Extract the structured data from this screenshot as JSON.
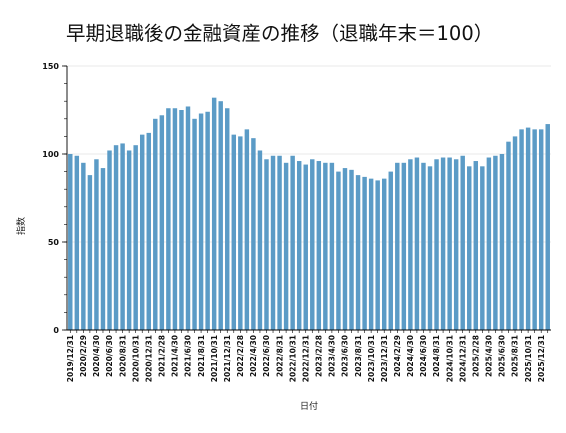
{
  "chart_data": {
    "type": "bar",
    "title": "早期退職後の金融資産の推移（退職年末＝100）",
    "xlabel": "日付",
    "ylabel": "指数",
    "ylim": [
      0,
      150
    ],
    "y_ticks": [
      0,
      50,
      100,
      150
    ],
    "grid": true,
    "bar_color": "#5b9bc6",
    "categories": [
      "2019/12/31",
      "",
      "2020/2/29",
      "",
      "2020/4/30",
      "",
      "2020/6/30",
      "",
      "2020/8/31",
      "",
      "2020/10/31",
      "",
      "2020/12/31",
      "",
      "2021/2/28",
      "",
      "2021/4/30",
      "",
      "2021/6/30",
      "",
      "2021/8/31",
      "",
      "2021/10/31",
      "",
      "2021/12/31",
      "",
      "2022/2/28",
      "",
      "2022/4/30",
      "",
      "2022/6/30",
      "",
      "2022/8/31",
      "",
      "2022/10/31",
      "",
      "2022/12/31",
      "",
      "2023/2/28",
      "",
      "2023/4/30",
      "",
      "2023/6/30",
      "",
      "2023/8/31",
      "",
      "2023/10/31",
      "",
      "2023/12/31",
      "",
      "2024/2/29",
      "",
      "2024/4/30",
      "",
      "2024/6/30",
      "",
      "2024/8/31",
      "",
      "2024/10/31",
      "",
      "2024/12/31",
      "",
      "2025/2/28",
      "",
      "2025/4/30",
      "",
      "2025/6/30",
      "",
      "2025/8/31",
      "",
      "2025/10/31",
      "",
      "2025/12/31",
      ""
    ],
    "values": [
      100,
      99,
      95,
      88,
      97,
      92,
      102,
      105,
      106,
      102,
      105,
      111,
      112,
      120,
      122,
      126,
      126,
      125,
      127,
      120,
      123,
      124,
      132,
      130,
      126,
      111,
      110,
      114,
      109,
      102,
      97,
      99,
      99,
      95,
      99,
      96,
      94,
      97,
      96,
      95,
      95,
      90,
      92,
      91,
      88,
      87,
      86,
      85,
      86,
      90,
      95,
      95,
      97,
      98,
      95,
      93,
      97,
      98,
      98,
      97,
      99,
      93,
      96,
      93,
      98,
      99,
      100,
      107,
      110,
      114,
      115,
      114,
      114,
      117
    ]
  }
}
